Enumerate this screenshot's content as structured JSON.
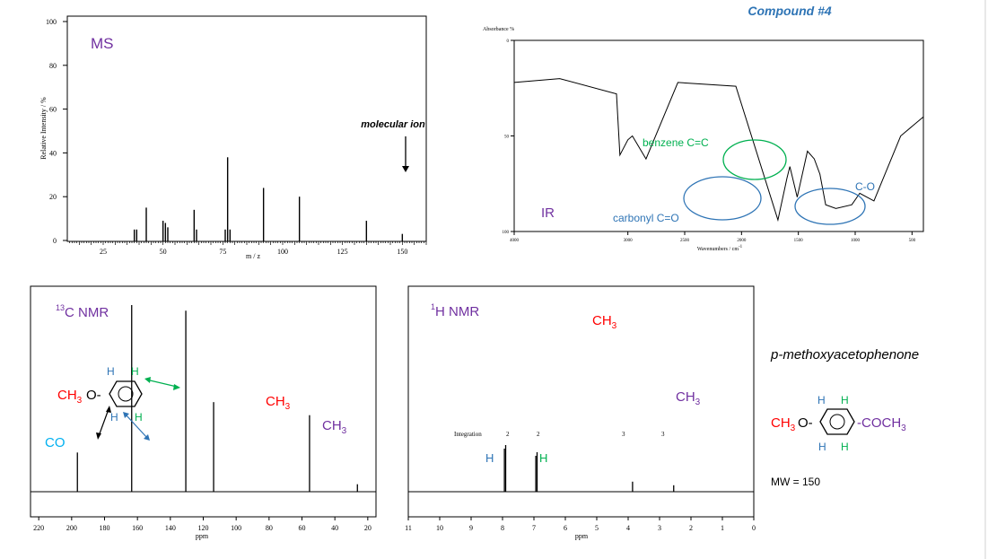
{
  "title": "Compound #4",
  "ms": {
    "label": "MS",
    "ylabel": "Relative Intensity / %",
    "xlabel": "m / z",
    "annotation": "molecular ion",
    "yticks": [
      "100",
      "80",
      "60",
      "40",
      "20",
      "0"
    ],
    "xticks": [
      "25",
      "50",
      "75",
      "100",
      "125",
      "150"
    ]
  },
  "ir": {
    "label": "IR",
    "ylabel": "Absorbance %",
    "xlabel": "Wavenumbers / cm",
    "xlabel_sup": "-1",
    "yticks": [
      "0",
      "50",
      "100"
    ],
    "xticks": [
      "4000",
      "3000",
      "2500",
      "2000",
      "1500",
      "1000",
      "500"
    ],
    "ann_benzene": "benzene C=C",
    "ann_carbonyl": "carbonyl C=O",
    "ann_co": "C-O"
  },
  "cnmr": {
    "label_sup": "13",
    "label": "C NMR",
    "xlabel": "ppm",
    "xticks": [
      "220",
      "200",
      "180",
      "160",
      "140",
      "120",
      "100",
      "80",
      "60",
      "40",
      "20"
    ],
    "peak_co": "CO",
    "peak_ch3": "CH",
    "peak_ch3_sub": "3",
    "struct_ch3": "CH",
    "struct_ch3_sub": "3",
    "struct_o": "O-",
    "h": "H"
  },
  "hnmr": {
    "label_sup": "1",
    "label": "H NMR",
    "xlabel": "ppm",
    "xticks": [
      "11",
      "10",
      "9",
      "8",
      "7",
      "6",
      "5",
      "4",
      "3",
      "2",
      "1",
      "0"
    ],
    "integration_label": "Integration",
    "integrations": [
      "2",
      "2",
      "3",
      "3"
    ],
    "peak_ch3": "CH",
    "peak_ch3_sub": "3",
    "h": "H"
  },
  "compound": {
    "name": "p-methoxyacetophenone",
    "left": "CH",
    "left_sub": "3",
    "left_o": "O-",
    "right": "-COCH",
    "right_sub": "3",
    "h": "H",
    "mw": "MW = 150"
  },
  "chart_data": [
    {
      "type": "bar",
      "name": "MS",
      "xlabel": "m / z",
      "ylabel": "Relative Intensity / %",
      "xlim": [
        10,
        160
      ],
      "ylim": [
        0,
        100
      ],
      "x": [
        38,
        39,
        43,
        50,
        51,
        52,
        63,
        64,
        76,
        77,
        78,
        92,
        107,
        135,
        150
      ],
      "values": [
        5,
        5,
        15,
        9,
        8,
        6,
        14,
        5,
        5,
        38,
        5,
        24,
        20,
        9,
        3
      ]
    },
    {
      "type": "line",
      "name": "IR",
      "xlabel": "Wavenumbers / cm-1",
      "ylabel": "Absorbance %",
      "xlim": [
        4000,
        400
      ],
      "ylim": [
        0,
        100
      ],
      "x": [
        4000,
        3600,
        3100,
        3070,
        3000,
        2960,
        2840,
        2560,
        2050,
        1680,
        1600,
        1575,
        1510,
        1420,
        1360,
        1310,
        1260,
        1170,
        1030,
        960,
        835,
        600,
        400
      ],
      "y": [
        22,
        20,
        28,
        60,
        52,
        50,
        62,
        22,
        24,
        94,
        72,
        66,
        82,
        58,
        62,
        70,
        86,
        88,
        86,
        80,
        84,
        50,
        40
      ]
    },
    {
      "type": "bar",
      "name": "13C NMR",
      "xlabel": "ppm",
      "xlim": [
        225,
        15
      ],
      "ylim": [
        0,
        100
      ],
      "x": [
        196.5,
        163.5,
        130.6,
        113.7,
        55.4,
        26.3
      ],
      "values": [
        21,
        100,
        97,
        48,
        41,
        4
      ]
    },
    {
      "type": "bar",
      "name": "1H NMR",
      "xlabel": "ppm",
      "xlim": [
        11,
        0
      ],
      "ylim": [
        0,
        100
      ],
      "x": [
        7.94,
        7.9,
        6.94,
        6.9,
        3.86,
        2.55
      ],
      "values": [
        60,
        65,
        50,
        55,
        14,
        9
      ],
      "integrations": [
        "2",
        "2",
        "3",
        "3"
      ]
    }
  ]
}
